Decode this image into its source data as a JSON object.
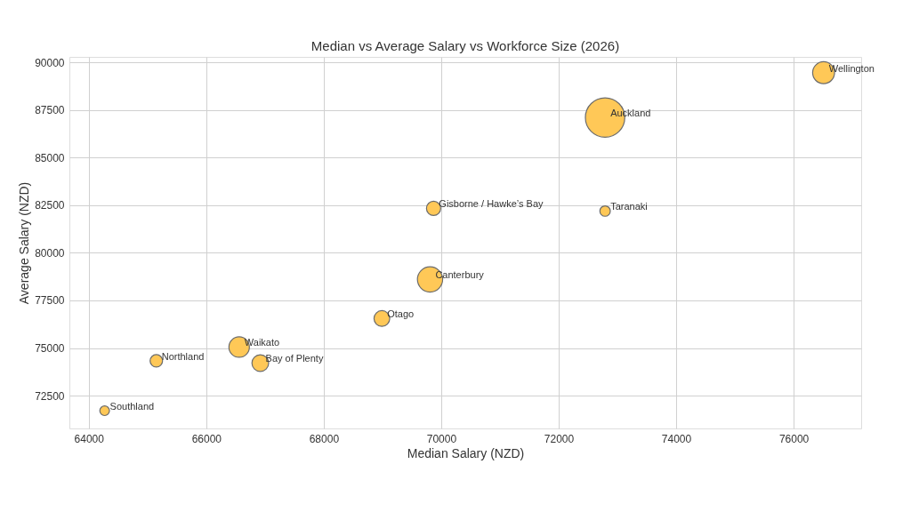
{
  "chart_data": {
    "type": "bubble",
    "title": "Median vs Average Salary vs Workforce Size (2026)",
    "xlabel": "Median Salary (NZD)",
    "ylabel": "Average Salary (NZD)",
    "x": [
      64270,
      65150,
      66560,
      66920,
      68990,
      69810,
      69870,
      72790,
      72790,
      76510
    ],
    "series": [
      {
        "color": "#ffc857",
        "values": [
          71710,
          74330,
          75050,
          74210,
          76550,
          78600,
          82330,
          82190,
          87100,
          89450
        ],
        "sizes": [
          0.06,
          0.1,
          0.27,
          0.18,
          0.16,
          0.41,
          0.13,
          0.07,
          1,
          0.31
        ]
      }
    ],
    "annotations": [
      {
        "text": "Southland",
        "x": 64270,
        "y": 71710
      },
      {
        "text": "Northland",
        "x": 65150,
        "y": 74330
      },
      {
        "text": "Waikato",
        "x": 66560,
        "y": 75050
      },
      {
        "text": "Bay of Plenty",
        "x": 66920,
        "y": 74210
      },
      {
        "text": "Otago",
        "x": 68990,
        "y": 76550
      },
      {
        "text": "Canterbury",
        "x": 69810,
        "y": 78600
      },
      {
        "text": "Gisborne / Hawke’s Bay",
        "x": 69870,
        "y": 82330
      },
      {
        "text": "Taranaki",
        "x": 72790,
        "y": 82190
      },
      {
        "text": "Auckland",
        "x": 72790,
        "y": 87100
      },
      {
        "text": "Wellington",
        "x": 76510,
        "y": 89450
      }
    ],
    "xlim": [
      63670,
      77150
    ],
    "xticks": [
      64000,
      66000,
      68000,
      70000,
      72000,
      74000,
      76000
    ],
    "ylim": [
      70780,
      90280
    ],
    "yticks": [
      72500,
      75000,
      77500,
      80000,
      82500,
      85000,
      87500,
      90000
    ],
    "grid": true
  }
}
